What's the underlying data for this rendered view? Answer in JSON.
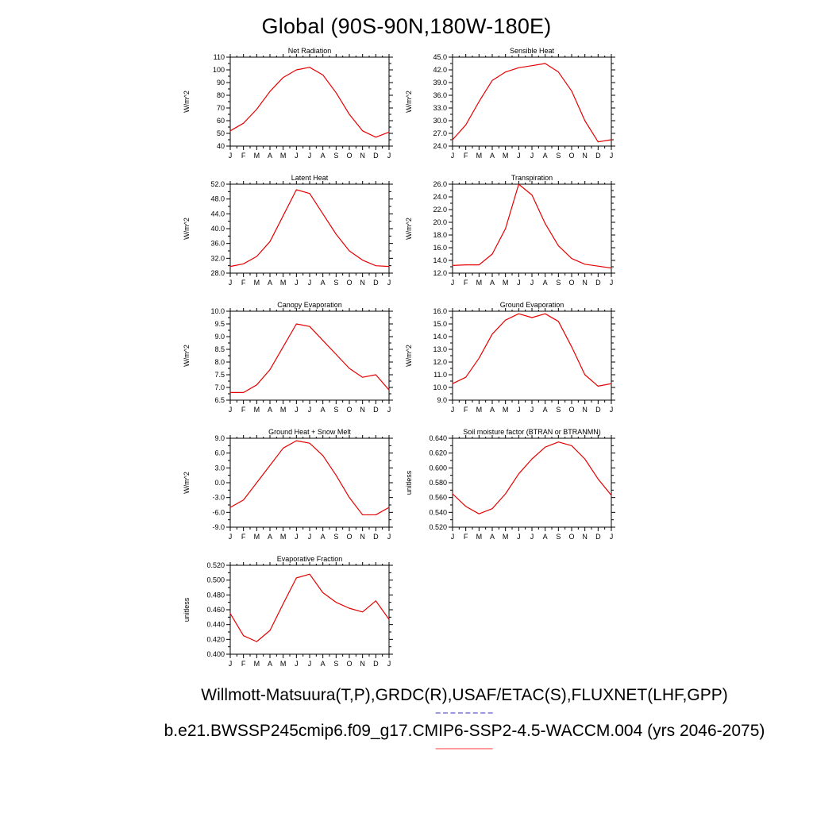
{
  "page": {
    "title": "Global (90S-90N,180W-180E)",
    "footer_line1": "Willmott-Matsuura(T,P),GRDC(R),USAF/ETAC(S),FLUXNET(LHF,GPP)",
    "footer_line2": "b.e21.BWSSP245cmip6.f09_g17.CMIP6-SSP2-4.5-WACCM.004 (yrs 2046-2075)"
  },
  "colors": {
    "line": "#e50000",
    "axis": "#000000",
    "legend_dashed_blue": "#9a9ade",
    "legend_solid_red": "#ff9a9a"
  },
  "chart_data": {
    "type": "line",
    "x_categories": [
      "J",
      "F",
      "M",
      "A",
      "M",
      "J",
      "J",
      "A",
      "S",
      "O",
      "N",
      "D",
      "J"
    ],
    "charts": [
      {
        "title": "Net Radiation",
        "ylabel": "W/m^2",
        "ymin": 40,
        "ymax": 110,
        "ystep": 10,
        "ydecimals": 0,
        "values": [
          52,
          58,
          69,
          83,
          94,
          100,
          102,
          96,
          82,
          65,
          52,
          47,
          51
        ]
      },
      {
        "title": "Sensible Heat",
        "ylabel": "W/m^2",
        "ymin": 24,
        "ymax": 45,
        "ystep": 3,
        "ydecimals": 1,
        "values": [
          25.5,
          29.0,
          34.5,
          39.5,
          41.5,
          42.5,
          43.0,
          43.5,
          41.5,
          37.0,
          30.0,
          25.0,
          25.5
        ]
      },
      {
        "title": "Latent Heat",
        "ylabel": "W/m^2",
        "ymin": 28,
        "ymax": 52,
        "ystep": 4,
        "ydecimals": 1,
        "values": [
          29.8,
          30.5,
          32.5,
          36.5,
          43.5,
          50.5,
          49.5,
          44.0,
          38.5,
          34.0,
          31.5,
          30.0,
          29.8
        ]
      },
      {
        "title": "Transpiration",
        "ylabel": "W/m^2",
        "ymin": 12,
        "ymax": 26,
        "ystep": 2,
        "ydecimals": 1,
        "values": [
          13.2,
          13.3,
          13.3,
          15.0,
          19.0,
          26.0,
          24.3,
          19.8,
          16.3,
          14.3,
          13.4,
          13.1,
          12.8
        ]
      },
      {
        "title": "Canopy Evaporation",
        "ylabel": "W/m^2",
        "ymin": 6.5,
        "ymax": 10.0,
        "ystep": 0.5,
        "ydecimals": 1,
        "values": [
          6.8,
          6.8,
          7.1,
          7.7,
          8.6,
          9.5,
          9.4,
          8.85,
          8.3,
          7.75,
          7.4,
          7.5,
          6.9
        ]
      },
      {
        "title": "Ground Evaporation",
        "ylabel": "W/m^2",
        "ymin": 9,
        "ymax": 16,
        "ystep": 1,
        "ydecimals": 1,
        "values": [
          10.3,
          10.8,
          12.3,
          14.2,
          15.3,
          15.8,
          15.5,
          15.8,
          15.2,
          13.2,
          11.0,
          10.1,
          10.3
        ]
      },
      {
        "title": "Ground Heat + Snow Melt",
        "ylabel": "W/m^2",
        "ymin": -9,
        "ymax": 9,
        "ystep": 3,
        "ydecimals": 1,
        "values": [
          -5.0,
          -3.5,
          0.0,
          3.5,
          7.0,
          8.5,
          8.0,
          5.5,
          1.5,
          -3.0,
          -6.5,
          -6.5,
          -5.0
        ]
      },
      {
        "title": "Soil moisture factor (BTRAN or BTRANMN)",
        "ylabel": "unitless",
        "ymin": 0.52,
        "ymax": 0.64,
        "ystep": 0.02,
        "ydecimals": 3,
        "values": [
          0.565,
          0.548,
          0.538,
          0.545,
          0.565,
          0.592,
          0.612,
          0.628,
          0.635,
          0.63,
          0.612,
          0.585,
          0.563
        ]
      },
      {
        "title": "Evaporative Fraction",
        "ylabel": "unitless",
        "ymin": 0.4,
        "ymax": 0.52,
        "ystep": 0.02,
        "ydecimals": 3,
        "values": [
          0.455,
          0.425,
          0.417,
          0.432,
          0.468,
          0.503,
          0.508,
          0.483,
          0.47,
          0.462,
          0.457,
          0.472,
          0.447
        ]
      }
    ]
  }
}
